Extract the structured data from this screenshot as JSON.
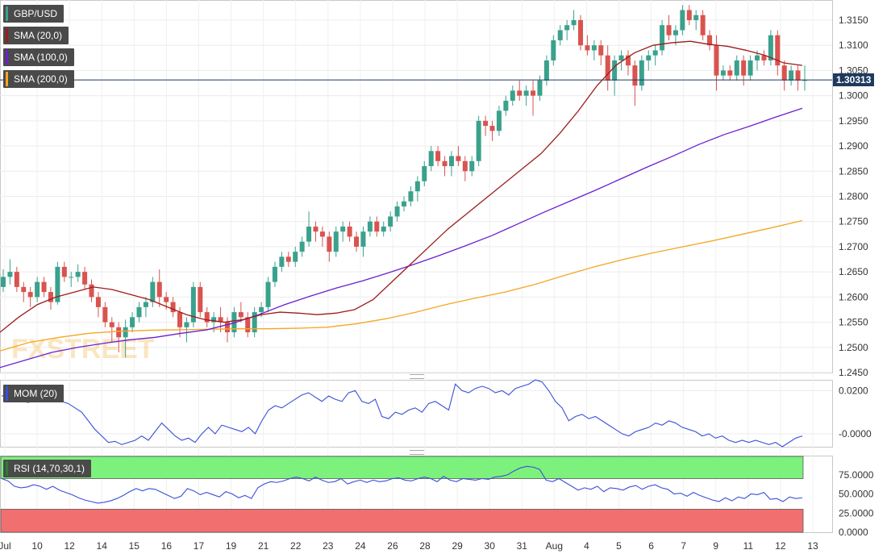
{
  "chart_data": [
    {
      "type": "candlestick",
      "symbol": "GBP/USD",
      "legend": [
        "GBP/USD",
        "SMA (20,0)",
        "SMA (100,0)",
        "SMA (200,0)"
      ],
      "ylim": [
        1.245,
        1.319
      ],
      "yticks": [
        "1.3150",
        "1.3100",
        "1.3050",
        "1.3000",
        "1.2950",
        "1.2900",
        "1.2850",
        "1.2800",
        "1.2750",
        "1.2700",
        "1.2650",
        "1.2600",
        "1.2550",
        "1.2500",
        "1.2450"
      ],
      "last_price": "1.30313",
      "candles_ohlc": [
        [
          1.262,
          1.2655,
          1.261,
          1.264
        ],
        [
          1.264,
          1.2675,
          1.2625,
          1.265
        ],
        [
          1.265,
          1.266,
          1.261,
          1.262
        ],
        [
          1.262,
          1.263,
          1.259,
          1.261
        ],
        [
          1.261,
          1.262,
          1.258,
          1.26
        ],
        [
          1.26,
          1.264,
          1.259,
          1.263
        ],
        [
          1.263,
          1.264,
          1.26,
          1.261
        ],
        [
          1.261,
          1.262,
          1.2575,
          1.259
        ],
        [
          1.259,
          1.267,
          1.2585,
          1.266
        ],
        [
          1.266,
          1.267,
          1.263,
          1.264
        ],
        [
          1.264,
          1.265,
          1.262,
          1.264
        ],
        [
          1.264,
          1.2665,
          1.263,
          1.265
        ],
        [
          1.265,
          1.266,
          1.2615,
          1.2625
        ],
        [
          1.2625,
          1.2635,
          1.259,
          1.26
        ],
        [
          1.26,
          1.261,
          1.256,
          1.258
        ],
        [
          1.258,
          1.259,
          1.254,
          1.255
        ],
        [
          1.255,
          1.256,
          1.251,
          1.254
        ],
        [
          1.254,
          1.255,
          1.249,
          1.252
        ],
        [
          1.252,
          1.2555,
          1.248,
          1.254
        ],
        [
          1.254,
          1.257,
          1.253,
          1.256
        ],
        [
          1.256,
          1.259,
          1.255,
          1.258
        ],
        [
          1.258,
          1.26,
          1.256,
          1.259
        ],
        [
          1.259,
          1.264,
          1.258,
          1.263
        ],
        [
          1.263,
          1.2655,
          1.258,
          1.26
        ],
        [
          1.26,
          1.261,
          1.2575,
          1.259
        ],
        [
          1.259,
          1.26,
          1.256,
          1.257
        ],
        [
          1.257,
          1.258,
          1.252,
          1.254
        ],
        [
          1.254,
          1.256,
          1.251,
          1.255
        ],
        [
          1.255,
          1.263,
          1.254,
          1.262
        ],
        [
          1.262,
          1.263,
          1.256,
          1.257
        ],
        [
          1.257,
          1.258,
          1.254,
          1.255
        ],
        [
          1.255,
          1.257,
          1.253,
          1.256
        ],
        [
          1.256,
          1.258,
          1.253,
          1.255
        ],
        [
          1.255,
          1.256,
          1.251,
          1.253
        ],
        [
          1.253,
          1.258,
          1.252,
          1.257
        ],
        [
          1.257,
          1.259,
          1.255,
          1.256
        ],
        [
          1.256,
          1.257,
          1.252,
          1.253
        ],
        [
          1.253,
          1.258,
          1.252,
          1.257
        ],
        [
          1.257,
          1.259,
          1.256,
          1.258
        ],
        [
          1.258,
          1.264,
          1.257,
          1.263
        ],
        [
          1.263,
          1.267,
          1.262,
          1.266
        ],
        [
          1.266,
          1.269,
          1.265,
          1.268
        ],
        [
          1.268,
          1.269,
          1.266,
          1.267
        ],
        [
          1.267,
          1.27,
          1.266,
          1.269
        ],
        [
          1.269,
          1.272,
          1.268,
          1.271
        ],
        [
          1.271,
          1.277,
          1.27,
          1.274
        ],
        [
          1.274,
          1.275,
          1.271,
          1.273
        ],
        [
          1.273,
          1.274,
          1.27,
          1.272
        ],
        [
          1.272,
          1.273,
          1.267,
          1.269
        ],
        [
          1.269,
          1.274,
          1.268,
          1.273
        ],
        [
          1.273,
          1.275,
          1.271,
          1.274
        ],
        [
          1.274,
          1.275,
          1.271,
          1.272
        ],
        [
          1.272,
          1.273,
          1.269,
          1.27
        ],
        [
          1.27,
          1.274,
          1.268,
          1.273
        ],
        [
          1.273,
          1.276,
          1.272,
          1.275
        ],
        [
          1.275,
          1.276,
          1.272,
          1.273
        ],
        [
          1.273,
          1.275,
          1.272,
          1.274
        ],
        [
          1.274,
          1.277,
          1.273,
          1.276
        ],
        [
          1.276,
          1.279,
          1.275,
          1.278
        ],
        [
          1.278,
          1.28,
          1.277,
          1.279
        ],
        [
          1.279,
          1.282,
          1.278,
          1.281
        ],
        [
          1.281,
          1.284,
          1.279,
          1.283
        ],
        [
          1.283,
          1.287,
          1.282,
          1.286
        ],
        [
          1.286,
          1.29,
          1.285,
          1.289
        ],
        [
          1.289,
          1.29,
          1.286,
          1.287
        ],
        [
          1.287,
          1.288,
          1.284,
          1.286
        ],
        [
          1.286,
          1.289,
          1.284,
          1.288
        ],
        [
          1.288,
          1.29,
          1.286,
          1.287
        ],
        [
          1.287,
          1.288,
          1.283,
          1.285
        ],
        [
          1.285,
          1.288,
          1.284,
          1.287
        ],
        [
          1.287,
          1.296,
          1.286,
          1.295
        ],
        [
          1.295,
          1.296,
          1.292,
          1.294
        ],
        [
          1.294,
          1.295,
          1.291,
          1.293
        ],
        [
          1.293,
          1.298,
          1.292,
          1.297
        ],
        [
          1.297,
          1.3,
          1.296,
          1.299
        ],
        [
          1.299,
          1.302,
          1.298,
          1.301
        ],
        [
          1.301,
          1.303,
          1.299,
          1.3
        ],
        [
          1.3,
          1.302,
          1.298,
          1.301
        ],
        [
          1.301,
          1.303,
          1.296,
          1.3
        ],
        [
          1.3,
          1.304,
          1.299,
          1.303
        ],
        [
          1.303,
          1.308,
          1.302,
          1.307
        ],
        [
          1.307,
          1.312,
          1.306,
          1.311
        ],
        [
          1.311,
          1.314,
          1.31,
          1.313
        ],
        [
          1.313,
          1.315,
          1.311,
          1.314
        ],
        [
          1.314,
          1.317,
          1.313,
          1.315
        ],
        [
          1.315,
          1.316,
          1.309,
          1.31
        ],
        [
          1.31,
          1.312,
          1.308,
          1.309
        ],
        [
          1.309,
          1.311,
          1.307,
          1.31
        ],
        [
          1.31,
          1.311,
          1.306,
          1.308
        ],
        [
          1.308,
          1.31,
          1.301,
          1.303
        ],
        [
          1.303,
          1.308,
          1.3,
          1.307
        ],
        [
          1.307,
          1.309,
          1.305,
          1.308
        ],
        [
          1.308,
          1.309,
          1.304,
          1.306
        ],
        [
          1.306,
          1.307,
          1.298,
          1.302
        ],
        [
          1.302,
          1.308,
          1.301,
          1.307
        ],
        [
          1.307,
          1.309,
          1.305,
          1.308
        ],
        [
          1.308,
          1.31,
          1.306,
          1.309
        ],
        [
          1.309,
          1.315,
          1.308,
          1.314
        ],
        [
          1.314,
          1.316,
          1.311,
          1.312
        ],
        [
          1.312,
          1.314,
          1.31,
          1.313
        ],
        [
          1.313,
          1.318,
          1.312,
          1.317
        ],
        [
          1.317,
          1.318,
          1.314,
          1.315
        ],
        [
          1.315,
          1.317,
          1.313,
          1.316
        ],
        [
          1.316,
          1.317,
          1.311,
          1.312
        ],
        [
          1.312,
          1.313,
          1.309,
          1.31
        ],
        [
          1.31,
          1.312,
          1.301,
          1.304
        ],
        [
          1.304,
          1.306,
          1.303,
          1.305
        ],
        [
          1.305,
          1.306,
          1.303,
          1.304
        ],
        [
          1.304,
          1.308,
          1.303,
          1.307
        ],
        [
          1.307,
          1.308,
          1.302,
          1.304
        ],
        [
          1.304,
          1.308,
          1.303,
          1.307
        ],
        [
          1.307,
          1.309,
          1.305,
          1.308
        ],
        [
          1.308,
          1.309,
          1.306,
          1.307
        ],
        [
          1.307,
          1.313,
          1.306,
          1.312
        ],
        [
          1.312,
          1.313,
          1.304,
          1.306
        ],
        [
          1.306,
          1.307,
          1.301,
          1.303
        ],
        [
          1.303,
          1.306,
          1.302,
          1.305
        ],
        [
          1.305,
          1.306,
          1.301,
          1.303
        ],
        [
          1.303,
          1.306,
          1.301,
          1.3031
        ]
      ],
      "sma20": [
        1.253,
        1.256,
        1.2585,
        1.26,
        1.261,
        1.262,
        1.2615,
        1.2605,
        1.2595,
        1.258,
        1.2565,
        1.2555,
        1.255,
        1.2555,
        1.2565,
        1.257,
        1.2568,
        1.2565,
        1.2568,
        1.2575,
        1.2595,
        1.263,
        1.2665,
        1.27,
        1.2735,
        1.2765,
        1.2795,
        1.2825,
        1.2855,
        1.2885,
        1.2925,
        1.297,
        1.302,
        1.306,
        1.3085,
        1.31,
        1.3105,
        1.3108,
        1.3102,
        1.3098,
        1.309,
        1.308,
        1.3065,
        1.306
      ],
      "sma100": [
        1.246,
        1.2475,
        1.249,
        1.25,
        1.2508,
        1.2515,
        1.252,
        1.2528,
        1.2535,
        1.2548,
        1.2565,
        1.2585,
        1.2602,
        1.2618,
        1.2632,
        1.2648,
        1.2665,
        1.2683,
        1.2702,
        1.2722,
        1.2745,
        1.2768,
        1.279,
        1.2812,
        1.2835,
        1.2858,
        1.288,
        1.2903,
        1.2923,
        1.294,
        1.2958,
        1.2975
      ],
      "sma200": [
        1.2493,
        1.251,
        1.252,
        1.2528,
        1.2532,
        1.2534,
        1.2535,
        1.2536,
        1.2537,
        1.2537,
        1.2538,
        1.254,
        1.2547,
        1.2557,
        1.257,
        1.2585,
        1.2598,
        1.261,
        1.2625,
        1.2643,
        1.266,
        1.2675,
        1.2688,
        1.27,
        1.2712,
        1.2725,
        1.2738,
        1.2752
      ],
      "colors": {
        "up": "#3aa18c",
        "down": "#d9534f",
        "sma20": "#9e1b1b",
        "sma100": "#6a1fd0",
        "sma200": "#f5a623",
        "price_line": "#1f3a5f"
      }
    },
    {
      "type": "line",
      "name": "MOM (20)",
      "yticks": [
        "0.0200",
        "-0.0000"
      ],
      "ylim": [
        -0.006,
        0.025
      ],
      "values": [
        0.0175,
        0.018,
        0.016,
        0.015,
        0.0145,
        0.0155,
        0.0165,
        0.015,
        0.0175,
        0.015,
        0.014,
        0.012,
        0.01,
        0.006,
        0.002,
        -0.001,
        -0.004,
        -0.0035,
        -0.005,
        -0.004,
        -0.003,
        -0.001,
        -0.003,
        0.001,
        0.005,
        0.002,
        -0.001,
        -0.003,
        -0.002,
        -0.004,
        0.0,
        0.003,
        0.0,
        0.004,
        0.003,
        0.002,
        0.001,
        0.003,
        0.0,
        0.006,
        0.011,
        0.013,
        0.012,
        0.014,
        0.016,
        0.018,
        0.019,
        0.017,
        0.015,
        0.0175,
        0.016,
        0.015,
        0.019,
        0.02,
        0.015,
        0.014,
        0.016,
        0.008,
        0.007,
        0.01,
        0.009,
        0.011,
        0.012,
        0.01,
        0.014,
        0.015,
        0.013,
        0.011,
        0.023,
        0.02,
        0.019,
        0.021,
        0.022,
        0.021,
        0.019,
        0.02,
        0.018,
        0.021,
        0.022,
        0.023,
        0.025,
        0.024,
        0.02,
        0.015,
        0.012,
        0.006,
        0.008,
        0.009,
        0.007,
        0.008,
        0.006,
        0.004,
        0.002,
        0.0,
        -0.001,
        0.001,
        0.002,
        0.003,
        0.005,
        0.004,
        0.006,
        0.005,
        0.003,
        0.002,
        0.001,
        -0.001,
        0.0,
        -0.002,
        -0.001,
        -0.003,
        -0.004,
        -0.003,
        -0.004,
        -0.003,
        -0.004,
        -0.005,
        -0.004,
        -0.006,
        -0.004,
        -0.002,
        -0.001
      ]
    },
    {
      "type": "line",
      "name": "RSI (14,70,30,1)",
      "yticks": [
        "75.0000",
        "50.0000",
        "25.0000",
        "0.0000"
      ],
      "ylim": [
        0,
        100
      ],
      "overbought": 70,
      "oversold": 30,
      "colors": {
        "overbought": "#7cf27c",
        "oversold": "#f26f6f",
        "line": "#3a4fd9"
      },
      "values": [
        70,
        67,
        60,
        58,
        59,
        62,
        60,
        56,
        60,
        55,
        52,
        49,
        45,
        42,
        40,
        38,
        39,
        41,
        44,
        48,
        53,
        57,
        54,
        57,
        56,
        52,
        48,
        44,
        47,
        57,
        54,
        49,
        52,
        49,
        46,
        53,
        50,
        45,
        48,
        44,
        58,
        63,
        66,
        65,
        67,
        70,
        72,
        70,
        67,
        72,
        68,
        65,
        66,
        70,
        63,
        66,
        68,
        65,
        68,
        66,
        67,
        70,
        71,
        68,
        67,
        70,
        72,
        70,
        66,
        73,
        68,
        66,
        70,
        69,
        68,
        70,
        69,
        72,
        73,
        75,
        80,
        84,
        86,
        85,
        82,
        68,
        66,
        70,
        65,
        60,
        55,
        58,
        56,
        60,
        53,
        58,
        57,
        55,
        59,
        61,
        56,
        60,
        62,
        58,
        56,
        50,
        51,
        47,
        52,
        48,
        45,
        42,
        40,
        45,
        41,
        46,
        44,
        50,
        49,
        52,
        43,
        44,
        40,
        46,
        44,
        45
      ]
    }
  ],
  "xaxis": {
    "ticks": [
      "Jul",
      "10",
      "12",
      "14",
      "15",
      "16",
      "17",
      "19",
      "21",
      "22",
      "23",
      "24",
      "26",
      "28",
      "29",
      "30",
      "31",
      "Aug",
      "4",
      "5",
      "6",
      "7",
      "9",
      "11",
      "12",
      "13"
    ]
  },
  "watermark": "FXSTREET"
}
